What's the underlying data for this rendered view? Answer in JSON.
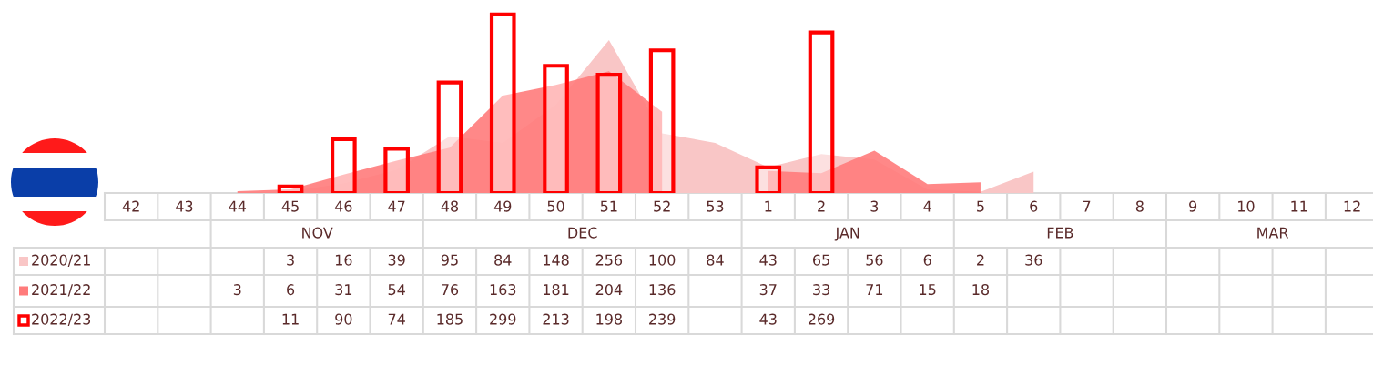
{
  "chart_data": {
    "type": "bar",
    "categories": [
      "42",
      "43",
      "44",
      "45",
      "46",
      "47",
      "48",
      "49",
      "50",
      "51",
      "52",
      "53",
      "1",
      "2",
      "3",
      "4",
      "5",
      "6",
      "7",
      "8",
      "9",
      "10",
      "11",
      "12"
    ],
    "series": [
      {
        "name": "2020/21",
        "type": "area",
        "color": "#f9c6c6",
        "values": [
          null,
          null,
          null,
          3,
          16,
          39,
          95,
          84,
          148,
          256,
          100,
          84,
          43,
          65,
          56,
          6,
          2,
          36,
          null,
          null,
          null,
          null,
          null,
          null
        ]
      },
      {
        "name": "2021/22",
        "type": "area",
        "color": "#ff7b7b",
        "values": [
          null,
          null,
          3,
          6,
          31,
          54,
          76,
          163,
          181,
          204,
          136,
          null,
          37,
          33,
          71,
          15,
          18,
          null,
          null,
          null,
          null,
          null,
          null,
          null
        ]
      },
      {
        "name": "2022/23",
        "color": "#ff0000",
        "values": [
          null,
          null,
          null,
          11,
          90,
          74,
          185,
          299,
          213,
          198,
          239,
          null,
          43,
          269,
          null,
          null,
          null,
          null,
          null,
          null,
          null,
          null,
          null,
          null
        ]
      }
    ],
    "data_labels": true,
    "legend": "bottom left",
    "annotations": [
      "NOV",
      "DEC",
      "JAN",
      "FEB",
      "MAR"
    ]
  }
}
